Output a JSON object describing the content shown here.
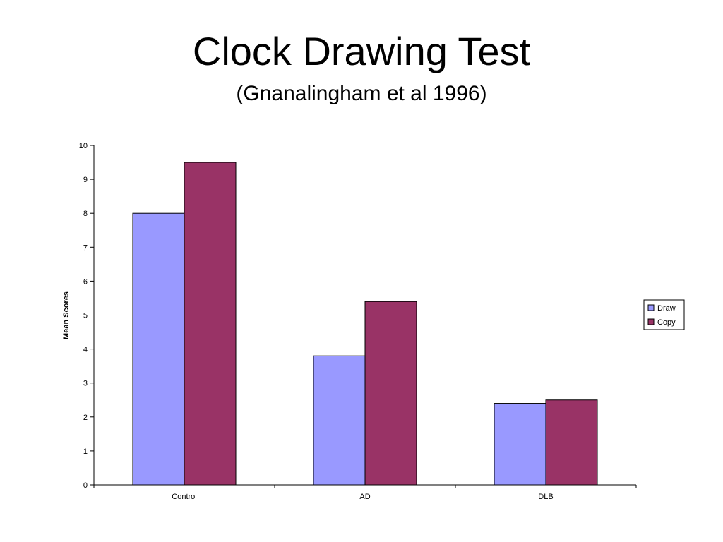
{
  "slide": {
    "title": "Clock Drawing Test",
    "subtitle": "(Gnanalingham et al 1996)"
  },
  "chart_data": {
    "type": "bar",
    "categories": [
      "Control",
      "AD",
      "DLB"
    ],
    "series": [
      {
        "name": "Draw",
        "values": [
          8.0,
          3.8,
          2.4
        ],
        "color": "#9999ff"
      },
      {
        "name": "Copy",
        "values": [
          9.5,
          5.4,
          2.5
        ],
        "color": "#993366"
      }
    ],
    "ylabel": "Mean Scores",
    "xlabel": "",
    "ylim": [
      0,
      10
    ],
    "yticks": [
      0,
      1,
      2,
      3,
      4,
      5,
      6,
      7,
      8,
      9,
      10
    ],
    "grid": false,
    "legend_position": "right"
  }
}
